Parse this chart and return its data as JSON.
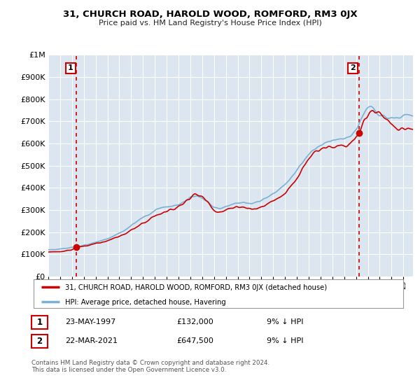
{
  "title": "31, CHURCH ROAD, HAROLD WOOD, ROMFORD, RM3 0JX",
  "subtitle": "Price paid vs. HM Land Registry's House Price Index (HPI)",
  "ylim": [
    0,
    1000000
  ],
  "yticks": [
    0,
    100000,
    200000,
    300000,
    400000,
    500000,
    600000,
    700000,
    800000,
    900000,
    1000000
  ],
  "ytick_labels": [
    "£0",
    "£100K",
    "£200K",
    "£300K",
    "£400K",
    "£500K",
    "£600K",
    "£700K",
    "£800K",
    "£900K",
    "£1M"
  ],
  "sale1_date": 1997.39,
  "sale1_price": 132000,
  "sale1_label": "1",
  "sale2_date": 2021.23,
  "sale2_price": 647500,
  "sale2_label": "2",
  "line_color_property": "#cc0000",
  "line_color_hpi": "#7ab0d4",
  "background_color": "#dce6f0",
  "grid_color": "#ffffff",
  "annotation_box_color": "#cc0000",
  "legend_label_property": "31, CHURCH ROAD, HAROLD WOOD, ROMFORD, RM3 0JX (detached house)",
  "legend_label_hpi": "HPI: Average price, detached house, Havering",
  "table_row1": [
    "1",
    "23-MAY-1997",
    "£132,000",
    "9% ↓ HPI"
  ],
  "table_row2": [
    "2",
    "22-MAR-2021",
    "£647,500",
    "9% ↓ HPI"
  ],
  "footer": "Contains HM Land Registry data © Crown copyright and database right 2024.\nThis data is licensed under the Open Government Licence v3.0.",
  "xmin": 1995.0,
  "xmax": 2025.8,
  "hpi_nodes_t": [
    1995.0,
    1995.5,
    1996.0,
    1996.5,
    1997.0,
    1997.5,
    1998.0,
    1998.5,
    1999.0,
    1999.5,
    2000.0,
    2000.5,
    2001.0,
    2001.5,
    2002.0,
    2002.5,
    2003.0,
    2003.5,
    2004.0,
    2004.5,
    2005.0,
    2005.5,
    2006.0,
    2006.5,
    2007.0,
    2007.5,
    2008.0,
    2008.5,
    2009.0,
    2009.5,
    2010.0,
    2010.5,
    2011.0,
    2011.5,
    2012.0,
    2012.5,
    2013.0,
    2013.5,
    2014.0,
    2014.5,
    2015.0,
    2015.5,
    2016.0,
    2016.5,
    2017.0,
    2017.5,
    2018.0,
    2018.5,
    2019.0,
    2019.5,
    2020.0,
    2020.5,
    2021.0,
    2021.5,
    2022.0,
    2022.5,
    2023.0,
    2023.5,
    2024.0,
    2024.5,
    2025.0,
    2025.5
  ],
  "hpi_nodes_v": [
    118000,
    120000,
    123000,
    127000,
    131000,
    136000,
    140000,
    147000,
    155000,
    162000,
    170000,
    183000,
    195000,
    210000,
    228000,
    248000,
    265000,
    278000,
    295000,
    308000,
    313000,
    316000,
    323000,
    338000,
    355000,
    365000,
    355000,
    335000,
    310000,
    305000,
    318000,
    328000,
    332000,
    330000,
    328000,
    333000,
    342000,
    358000,
    375000,
    393000,
    415000,
    445000,
    480000,
    520000,
    555000,
    575000,
    592000,
    603000,
    610000,
    618000,
    620000,
    635000,
    660000,
    720000,
    775000,
    755000,
    730000,
    720000,
    715000,
    720000,
    725000,
    730000
  ],
  "prop_nodes_t": [
    1995.0,
    1995.5,
    1996.0,
    1996.5,
    1997.0,
    1997.4,
    1997.8,
    1998.2,
    1998.7,
    1999.2,
    1999.7,
    2000.2,
    2000.7,
    2001.2,
    2001.7,
    2002.2,
    2002.7,
    2003.2,
    2003.7,
    2004.2,
    2004.7,
    2005.0,
    2005.3,
    2005.7,
    2006.0,
    2006.3,
    2006.7,
    2007.0,
    2007.3,
    2007.6,
    2007.9,
    2008.3,
    2008.7,
    2009.0,
    2009.4,
    2009.8,
    2010.2,
    2010.6,
    2011.0,
    2011.4,
    2011.8,
    2012.2,
    2012.6,
    2013.0,
    2013.4,
    2013.8,
    2014.2,
    2014.6,
    2015.0,
    2015.4,
    2015.8,
    2016.2,
    2016.6,
    2017.0,
    2017.4,
    2017.8,
    2018.2,
    2018.6,
    2019.0,
    2019.4,
    2019.8,
    2020.2,
    2020.6,
    2021.0,
    2021.23,
    2021.6,
    2022.0,
    2022.4,
    2022.8,
    2023.2,
    2023.6,
    2024.0,
    2024.4,
    2024.8,
    2025.2,
    2025.5
  ],
  "prop_nodes_v": [
    110000,
    111000,
    113000,
    116000,
    120000,
    132000,
    135000,
    138000,
    143000,
    149000,
    157000,
    165000,
    175000,
    185000,
    198000,
    215000,
    232000,
    248000,
    262000,
    275000,
    288000,
    293000,
    297000,
    305000,
    315000,
    330000,
    342000,
    355000,
    368000,
    372000,
    365000,
    348000,
    322000,
    295000,
    288000,
    295000,
    305000,
    312000,
    315000,
    312000,
    308000,
    305000,
    308000,
    315000,
    325000,
    338000,
    350000,
    362000,
    378000,
    400000,
    425000,
    460000,
    498000,
    533000,
    552000,
    568000,
    578000,
    585000,
    588000,
    592000,
    595000,
    598000,
    600000,
    620000,
    647500,
    690000,
    735000,
    755000,
    738000,
    718000,
    710000,
    688000,
    672000,
    665000,
    668000,
    672000
  ]
}
